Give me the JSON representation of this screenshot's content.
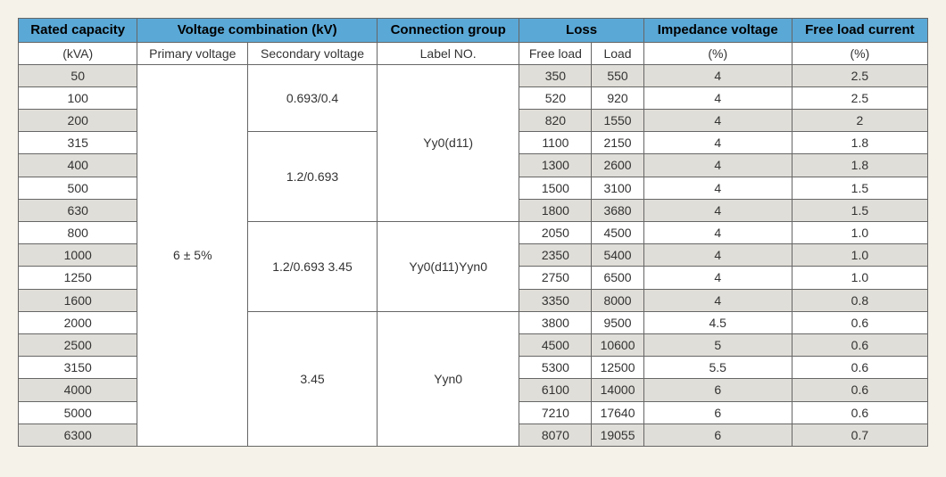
{
  "header": {
    "rated_capacity": "Rated capacity",
    "voltage_combination": "Voltage combination (kV)",
    "connection_group": "Connection group",
    "loss": "Loss",
    "impedance_voltage": "Impedance voltage",
    "free_load_current": "Free load current"
  },
  "subheader": {
    "kva": "(kVA)",
    "primary_voltage": "Primary voltage",
    "secondary_voltage": "Secondary voltage",
    "label_no": "Label NO.",
    "free_load": "Free load",
    "load": "Load",
    "pct1": "(%)",
    "pct2": "(%)"
  },
  "primary_voltage": "6 ± 5%",
  "secondary": {
    "sv1": "0.693/0.4",
    "sv2": "1.2/0.693",
    "sv3": "1.2/0.693 3.45",
    "sv4": "3.45"
  },
  "connection": {
    "cg1": "Yy0(d11)",
    "cg2": "Yy0(d11)Yyn0",
    "cg3": "Yyn0"
  },
  "rows": [
    {
      "cap": "50",
      "fl": "350",
      "ld": "550",
      "imp": "4",
      "flc": "2.5"
    },
    {
      "cap": "100",
      "fl": "520",
      "ld": "920",
      "imp": "4",
      "flc": "2.5"
    },
    {
      "cap": "200",
      "fl": "820",
      "ld": "1550",
      "imp": "4",
      "flc": "2"
    },
    {
      "cap": "315",
      "fl": "1100",
      "ld": "2150",
      "imp": "4",
      "flc": "1.8"
    },
    {
      "cap": "400",
      "fl": "1300",
      "ld": "2600",
      "imp": "4",
      "flc": "1.8"
    },
    {
      "cap": "500",
      "fl": "1500",
      "ld": "3100",
      "imp": "4",
      "flc": "1.5"
    },
    {
      "cap": "630",
      "fl": "1800",
      "ld": "3680",
      "imp": "4",
      "flc": "1.5"
    },
    {
      "cap": "800",
      "fl": "2050",
      "ld": "4500",
      "imp": "4",
      "flc": "1.0"
    },
    {
      "cap": "1000",
      "fl": "2350",
      "ld": "5400",
      "imp": "4",
      "flc": "1.0"
    },
    {
      "cap": "1250",
      "fl": "2750",
      "ld": "6500",
      "imp": "4",
      "flc": "1.0"
    },
    {
      "cap": "1600",
      "fl": "3350",
      "ld": "8000",
      "imp": "4",
      "flc": "0.8"
    },
    {
      "cap": "2000",
      "fl": "3800",
      "ld": "9500",
      "imp": "4.5",
      "flc": "0.6"
    },
    {
      "cap": "2500",
      "fl": "4500",
      "ld": "10600",
      "imp": "5",
      "flc": "0.6"
    },
    {
      "cap": "3150",
      "fl": "5300",
      "ld": "12500",
      "imp": "5.5",
      "flc": "0.6"
    },
    {
      "cap": "4000",
      "fl": "6100",
      "ld": "14000",
      "imp": "6",
      "flc": "0.6"
    },
    {
      "cap": "5000",
      "fl": "7210",
      "ld": "17640",
      "imp": "6",
      "flc": "0.6"
    },
    {
      "cap": "6300",
      "fl": "8070",
      "ld": "19055",
      "imp": "6",
      "flc": "0.7"
    }
  ],
  "colors": {
    "header_bg": "#5aa8d6",
    "stripe_bg": "#e0ded8",
    "border": "#666666",
    "page_bg": "#f5f2ea"
  }
}
